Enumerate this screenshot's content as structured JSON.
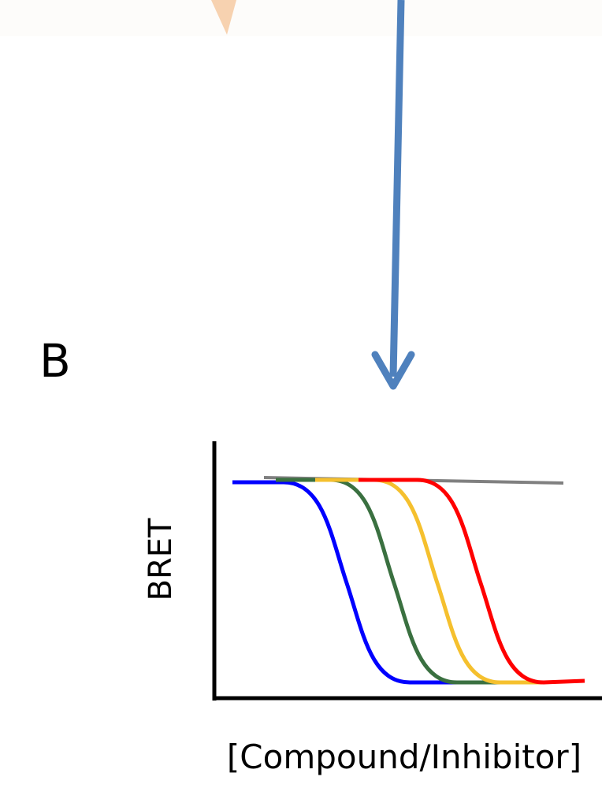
{
  "panel_label": "B",
  "y_axis_label": "BRET",
  "x_axis_label": "[Compound/Inhibitor]"
}
